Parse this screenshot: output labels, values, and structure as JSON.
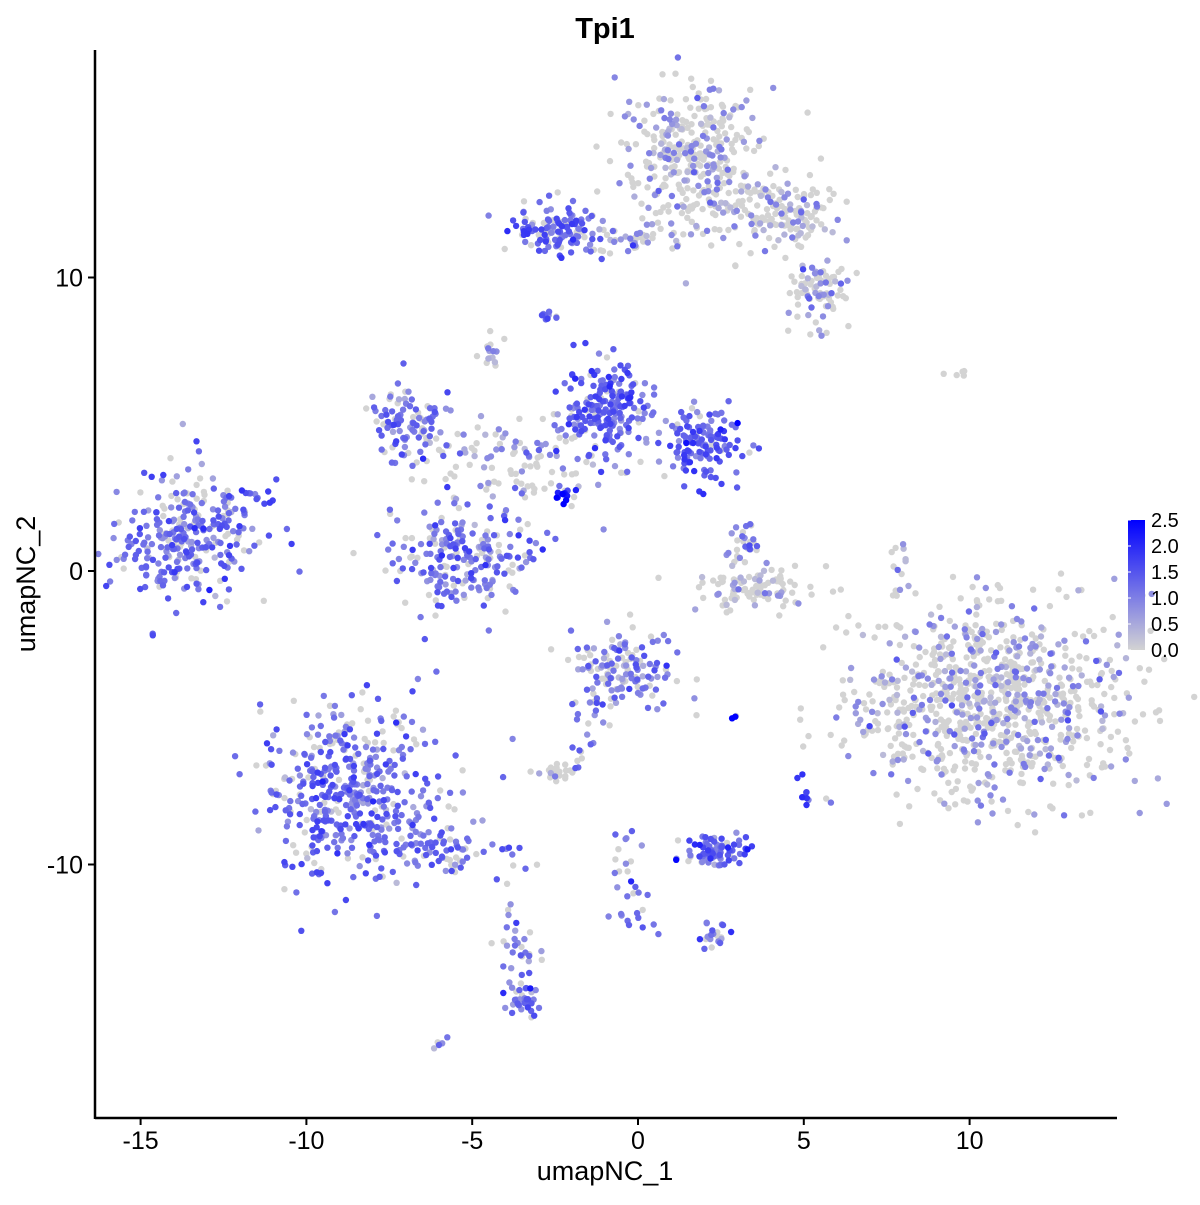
{
  "chart_data": {
    "type": "scatter",
    "title": "Tpi1",
    "xlabel": "umapNC_1",
    "ylabel": "umapNC_2",
    "xlim": [
      -16.4,
      14.4
    ],
    "ylim": [
      -18.6,
      17.8
    ],
    "x_ticks": [
      -15,
      -10,
      -5,
      0,
      5,
      10
    ],
    "y_ticks": [
      -10,
      0,
      10
    ],
    "grid": false,
    "color_scale": {
      "low": "#D3D3D3",
      "high": "#0000FF",
      "min": 0.0,
      "max": 2.5
    },
    "legend": {
      "position": "right",
      "labels": [
        "2.5",
        "2.0",
        "1.5",
        "1.0",
        "0.5",
        "0.0"
      ]
    },
    "clusters_note_units": "data units",
    "clusters": [
      {
        "x": -13.5,
        "y": 1.2,
        "sx": 1.1,
        "sy": 1.0,
        "n": 300,
        "expr": 0.85
      },
      {
        "x": 1.6,
        "y": 14.0,
        "sx": 1.0,
        "sy": 1.3,
        "n": 350,
        "expr": 0.35
      },
      {
        "x": 4.3,
        "y": 12.1,
        "sx": 1.0,
        "sy": 0.6,
        "n": 150,
        "expr": 0.3
      },
      {
        "x": 5.5,
        "y": 9.6,
        "sx": 0.5,
        "sy": 0.6,
        "n": 80,
        "expr": 0.4
      },
      {
        "x": -2.4,
        "y": 11.6,
        "sx": 0.7,
        "sy": 0.4,
        "n": 120,
        "expr": 0.9
      },
      {
        "x": -0.5,
        "y": 11.3,
        "sx": 0.8,
        "sy": 0.2,
        "n": 40,
        "expr": 0.6
      },
      {
        "x": -0.8,
        "y": 5.5,
        "sx": 0.7,
        "sy": 0.8,
        "n": 200,
        "expr": 1.0
      },
      {
        "x": 1.9,
        "y": 4.3,
        "sx": 0.6,
        "sy": 0.6,
        "n": 130,
        "expr": 1.1
      },
      {
        "x": -6.9,
        "y": 5.1,
        "sx": 0.6,
        "sy": 0.7,
        "n": 100,
        "expr": 0.8
      },
      {
        "x": -5.2,
        "y": 0.4,
        "sx": 1.1,
        "sy": 0.8,
        "n": 220,
        "expr": 0.8
      },
      {
        "x": -3.6,
        "y": 3.8,
        "sx": 1.4,
        "sy": 0.8,
        "n": 120,
        "expr": 0.5
      },
      {
        "x": 3.4,
        "y": -0.6,
        "sx": 1.0,
        "sy": 0.4,
        "n": 100,
        "expr": 0.3
      },
      {
        "x": 10.5,
        "y": -4.4,
        "sx": 2.0,
        "sy": 1.7,
        "n": 900,
        "expr": 0.35
      },
      {
        "x": -0.5,
        "y": -3.4,
        "sx": 0.8,
        "sy": 0.7,
        "n": 150,
        "expr": 0.7
      },
      {
        "x": -8.7,
        "y": -7.5,
        "sx": 1.3,
        "sy": 1.4,
        "n": 450,
        "expr": 0.9
      },
      {
        "x": -5.7,
        "y": -9.5,
        "sx": 1.2,
        "sy": 0.5,
        "n": 80,
        "expr": 0.9
      },
      {
        "x": -3.6,
        "y": -13.2,
        "sx": 0.3,
        "sy": 1.0,
        "n": 40,
        "expr": 0.7
      },
      {
        "x": -3.4,
        "y": -14.8,
        "sx": 0.2,
        "sy": 0.3,
        "n": 25,
        "expr": 1.0
      },
      {
        "x": 2.3,
        "y": -9.5,
        "sx": 0.5,
        "sy": 0.3,
        "n": 80,
        "expr": 1.0
      },
      {
        "x": -0.2,
        "y": -10.5,
        "sx": 0.3,
        "sy": 0.9,
        "n": 30,
        "expr": 0.9
      },
      {
        "x": 2.3,
        "y": -12.4,
        "sx": 0.2,
        "sy": 0.2,
        "n": 20,
        "expr": 1.0
      },
      {
        "x": -2.4,
        "y": -6.8,
        "sx": 0.3,
        "sy": 0.2,
        "n": 25,
        "expr": 0.4
      },
      {
        "x": -2.8,
        "y": 8.7,
        "sx": 0.15,
        "sy": 0.15,
        "n": 10,
        "expr": 1.0
      },
      {
        "x": -4.5,
        "y": 7.5,
        "sx": 0.2,
        "sy": 0.3,
        "n": 15,
        "expr": 0.3
      },
      {
        "x": 3.1,
        "y": 0.9,
        "sx": 0.3,
        "sy": 0.4,
        "n": 25,
        "expr": 0.7
      },
      {
        "x": 9.7,
        "y": 6.7,
        "sx": 0.2,
        "sy": 0.1,
        "n": 5,
        "expr": 0.0
      },
      {
        "x": 7.9,
        "y": 0.0,
        "sx": 0.2,
        "sy": 0.6,
        "n": 10,
        "expr": 0.5
      },
      {
        "x": 5.0,
        "y": -7.5,
        "sx": 0.1,
        "sy": 0.3,
        "n": 10,
        "expr": 1.0
      },
      {
        "x": -11.5,
        "y": 2.6,
        "sx": 0.2,
        "sy": 0.2,
        "n": 8,
        "expr": 1.0
      },
      {
        "x": -2.3,
        "y": 2.6,
        "sx": 0.2,
        "sy": 0.2,
        "n": 15,
        "expr": 2.0
      },
      {
        "x": 2.9,
        "y": -4.9,
        "sx": 0.05,
        "sy": 0.05,
        "n": 3,
        "expr": 2.5
      },
      {
        "x": -6.0,
        "y": -16.1,
        "sx": 0.1,
        "sy": 0.1,
        "n": 5,
        "expr": 0.7
      },
      {
        "x": -1.6,
        "y": -5.8,
        "sx": 0.3,
        "sy": 0.5,
        "n": 10,
        "expr": 0.8
      }
    ]
  }
}
